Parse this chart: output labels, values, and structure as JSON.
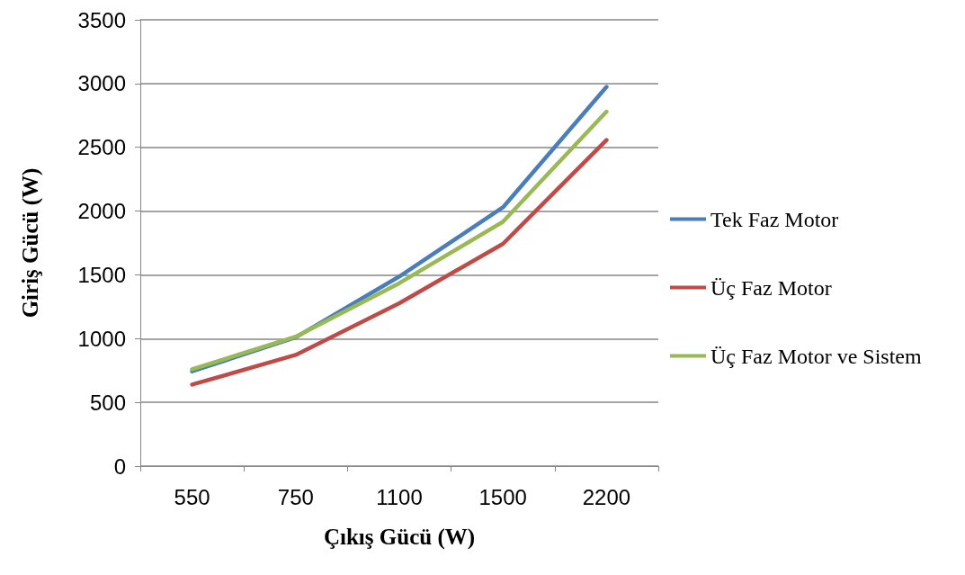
{
  "chart_data": {
    "type": "line",
    "xlabel": "Çıkış Gücü (W)",
    "ylabel": "Giriş Gücü (W)",
    "categories": [
      "550",
      "750",
      "1100",
      "1500",
      "2200"
    ],
    "series": [
      {
        "name": "Tek Faz Motor",
        "color": "#4a7ebb",
        "values": [
          743,
          1010,
          1487,
          2029,
          2974
        ]
      },
      {
        "name": "Üç Faz Motor",
        "color": "#be4b48",
        "values": [
          639,
          872,
          1277,
          1743,
          2557
        ]
      },
      {
        "name": "Üç Faz Motor ve Sistem",
        "color": "#98b954",
        "values": [
          759,
          1015,
          1435,
          1916,
          2780
        ]
      }
    ],
    "ylim": [
      0,
      3500
    ],
    "yticks": [
      0,
      500,
      1000,
      1500,
      2000,
      2500,
      3000,
      3500
    ],
    "grid": "y",
    "legend": "right",
    "marker": "none",
    "line_style": "solid"
  }
}
